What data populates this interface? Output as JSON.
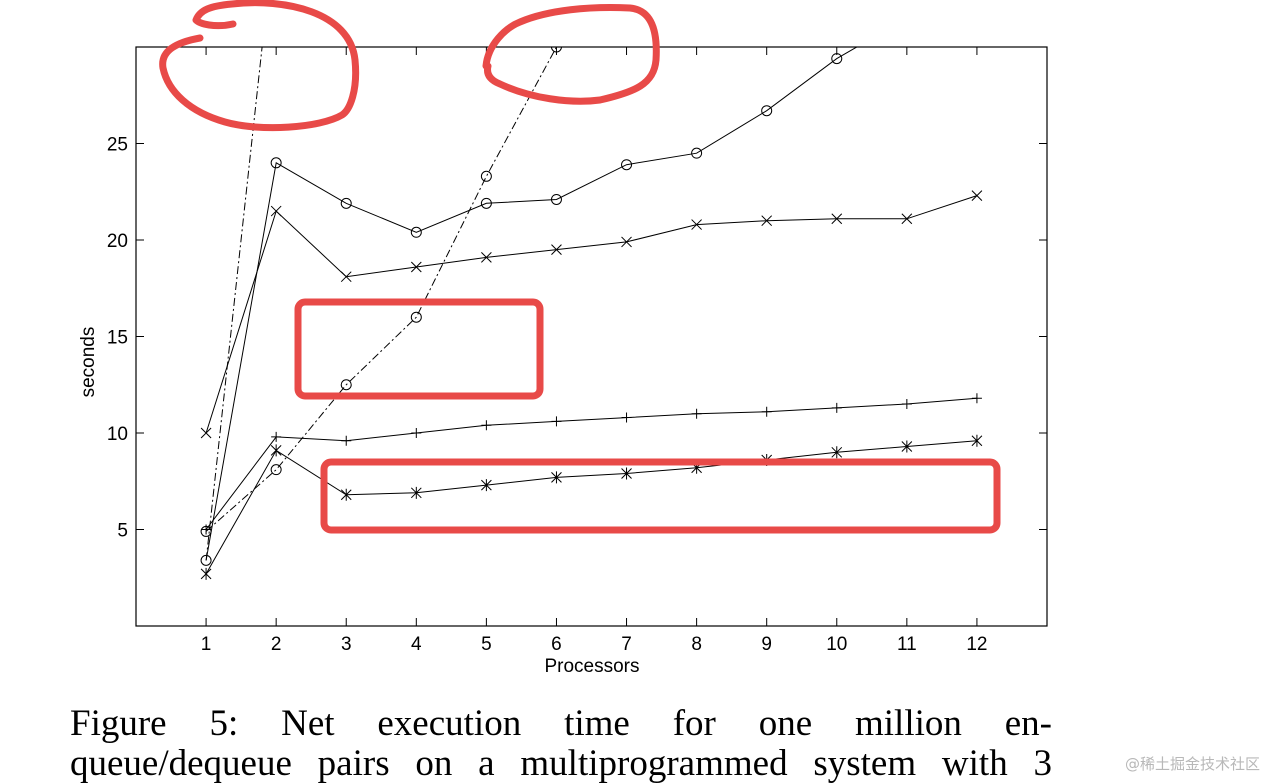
{
  "chart_data": {
    "type": "line",
    "title": "",
    "xlabel": "Processors",
    "ylabel": "seconds",
    "xlim": [
      0,
      13
    ],
    "ylim": [
      0,
      30
    ],
    "xticks": [
      1,
      2,
      3,
      4,
      5,
      6,
      7,
      8,
      9,
      10,
      11,
      12
    ],
    "yticks": [
      5,
      10,
      15,
      20,
      25
    ],
    "grid": false,
    "legend": "none",
    "series": [
      {
        "marker": "circle",
        "style": "solid",
        "x": [
          1,
          2,
          3,
          4,
          5,
          6,
          7,
          8,
          9,
          10,
          11
        ],
        "y": [
          3.4,
          24.0,
          21.9,
          20.4,
          21.9,
          22.1,
          23.9,
          24.5,
          26.7,
          29.4,
          31.5
        ]
      },
      {
        "marker": "x",
        "style": "solid",
        "x": [
          1,
          2,
          3,
          4,
          5,
          6,
          7,
          8,
          9,
          10,
          11,
          12
        ],
        "y": [
          10.0,
          21.5,
          18.1,
          18.6,
          19.1,
          19.5,
          19.9,
          20.8,
          21.0,
          21.1,
          21.1,
          22.3
        ]
      },
      {
        "marker": "plus",
        "style": "solid",
        "x": [
          1,
          2,
          3,
          4,
          5,
          6,
          7,
          8,
          9,
          10,
          11,
          12
        ],
        "y": [
          5.0,
          9.8,
          9.6,
          10.0,
          10.4,
          10.6,
          10.8,
          11.0,
          11.1,
          11.3,
          11.5,
          11.8
        ]
      },
      {
        "marker": "asterisk",
        "style": "solid",
        "x": [
          1,
          2,
          3,
          4,
          5,
          6,
          7,
          8,
          9,
          10,
          11,
          12
        ],
        "y": [
          2.7,
          9.1,
          6.8,
          6.9,
          7.3,
          7.7,
          7.9,
          8.2,
          8.6,
          9.0,
          9.3,
          9.6
        ]
      },
      {
        "marker": "circle",
        "style": "dashdot",
        "x": [
          1,
          2,
          3,
          4,
          5,
          6
        ],
        "y": [
          4.9,
          8.1,
          12.5,
          16.0,
          23.3,
          30.0
        ]
      },
      {
        "marker": "none",
        "style": "dashdot",
        "x": [
          1,
          1.8
        ],
        "y": [
          3.4,
          30.0
        ]
      }
    ]
  },
  "caption": {
    "line1": "Figure 5:  Net execution time for one million en-",
    "line2": "queue/dequeue pairs on a multiprogrammed system with 3"
  },
  "watermark": "@稀土掘金技术社区",
  "annotation_color": "#e84a48"
}
